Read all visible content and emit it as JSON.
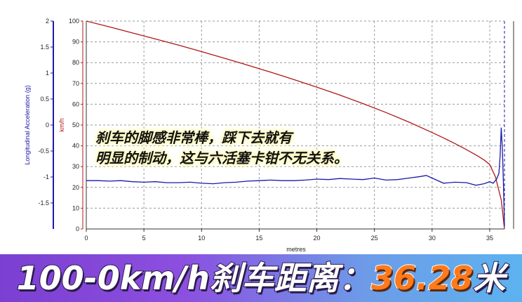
{
  "chart_data": {
    "type": "line",
    "xlabel": "metres",
    "x_ticks": [
      "0",
      "5",
      "10",
      "15",
      "20",
      "25",
      "30",
      "35"
    ],
    "xlim": [
      0,
      36.28
    ],
    "y_left": {
      "label": "Longitudinal Acceleration (g)",
      "ticks": [
        "2",
        "1.5",
        "1",
        "0.5",
        "0",
        "-0.5",
        "-1",
        "-1.5"
      ],
      "ylim": [
        -2,
        2
      ],
      "color": "#1a1aa8"
    },
    "y_right": {
      "label": "km/h",
      "ticks": [
        "100",
        "90",
        "80",
        "70",
        "60",
        "50",
        "40",
        "30",
        "20",
        "10",
        "0"
      ],
      "ylim": [
        0,
        100
      ],
      "color": "#b01818"
    },
    "grid": true,
    "series": [
      {
        "axis": "km/h",
        "color": "#b01818",
        "x": [
          0,
          2,
          4,
          6,
          8,
          10,
          12,
          14,
          16,
          18,
          20,
          22,
          24,
          26,
          28,
          30,
          31,
          32,
          33,
          34,
          34.5,
          35,
          35.5,
          36,
          36.28
        ],
        "y": [
          100,
          97.2,
          94.3,
          91.4,
          88.4,
          85.3,
          82.1,
          78.8,
          75.4,
          71.9,
          68.2,
          64.4,
          60.3,
          56.0,
          51.4,
          46.4,
          43.8,
          41.0,
          38.1,
          35.0,
          33.2,
          31.0,
          25.0,
          14.0,
          0
        ]
      },
      {
        "axis": "g",
        "color": "#1a1aa8",
        "x": [
          0,
          1,
          2,
          3,
          4,
          5,
          6,
          7,
          8,
          9,
          10,
          11,
          12,
          13,
          14,
          15,
          16,
          17,
          18,
          19,
          20,
          21,
          22,
          23,
          24,
          25,
          26,
          27,
          28,
          29,
          29.5,
          30,
          31,
          32,
          33,
          33.8,
          34.5,
          35,
          35.3,
          35.6,
          35.8,
          35.9,
          36.0,
          36.1,
          36.2,
          36.28
        ],
        "y": [
          -1.07,
          -1.07,
          -1.08,
          -1.07,
          -1.09,
          -1.1,
          -1.09,
          -1.11,
          -1.11,
          -1.1,
          -1.12,
          -1.13,
          -1.11,
          -1.1,
          -1.08,
          -1.07,
          -1.06,
          -1.07,
          -1.07,
          -1.06,
          -1.04,
          -1.05,
          -1.03,
          -1.04,
          -1.05,
          -1.02,
          -1.06,
          -1.05,
          -1.02,
          -0.99,
          -0.97,
          -1.02,
          -1.12,
          -1.1,
          -1.11,
          -1.16,
          -1.13,
          -1.09,
          -1.12,
          -1.04,
          -0.93,
          -0.6,
          -0.05,
          -0.45,
          -1.2,
          -1.95
        ]
      }
    ]
  },
  "caption": {
    "line1": "刹车的脚感非常棒，踩下去就有",
    "line2": "明显的制动，这与六活塞卡钳不无关系。"
  },
  "banner": {
    "label": "100-0km/h刹车距离：",
    "value": "36.28",
    "unit": "米"
  }
}
